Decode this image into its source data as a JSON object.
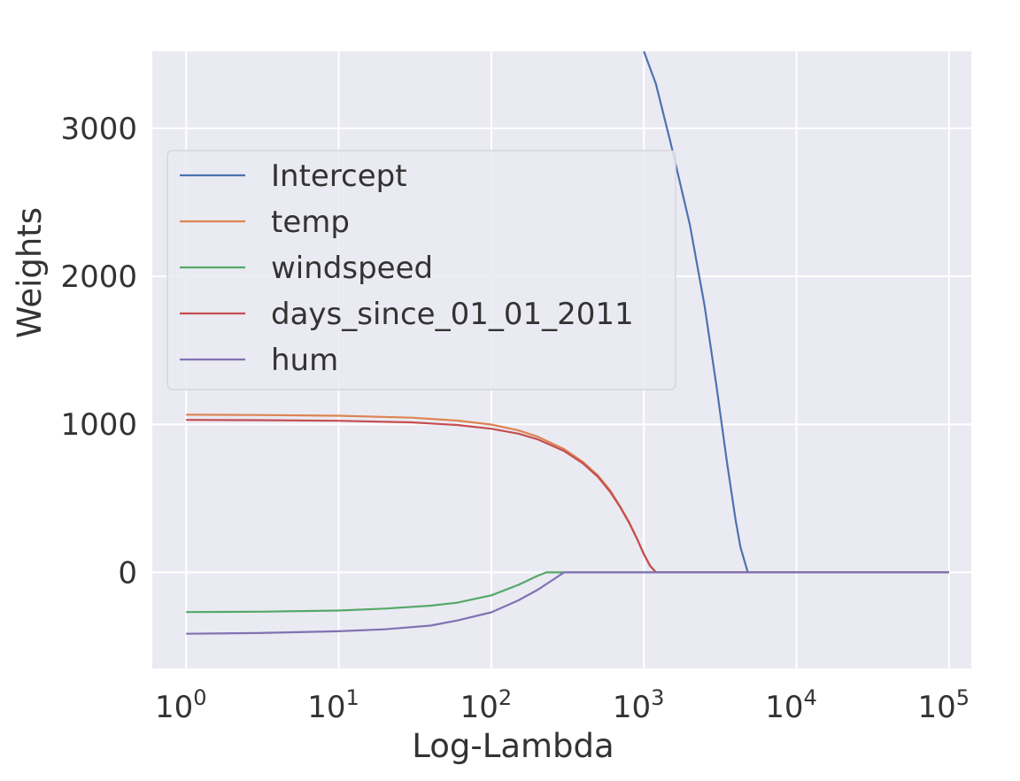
{
  "chart_data": {
    "type": "line",
    "title": "",
    "xlabel": "Log-Lambda",
    "ylabel": "Weights",
    "xscale": "log",
    "xlim": [
      0.6,
      140000
    ],
    "ylim": [
      -650,
      3520
    ],
    "xticks": [
      {
        "value": 1,
        "base": "10",
        "exp": "0"
      },
      {
        "value": 10,
        "base": "10",
        "exp": "1"
      },
      {
        "value": 100,
        "base": "10",
        "exp": "2"
      },
      {
        "value": 1000,
        "base": "10",
        "exp": "3"
      },
      {
        "value": 10000,
        "base": "10",
        "exp": "4"
      },
      {
        "value": 100000,
        "base": "10",
        "exp": "5"
      }
    ],
    "yticks": [
      {
        "value": 0,
        "label": "0"
      },
      {
        "value": 1000,
        "label": "1000"
      },
      {
        "value": 2000,
        "label": "2000"
      },
      {
        "value": 3000,
        "label": "3000"
      }
    ],
    "grid": true,
    "legend_position": "upper-left",
    "series": [
      {
        "name": "Intercept",
        "color": "#4c72b0",
        "x": [
          1000,
          1200,
          1500,
          2000,
          2500,
          3000,
          3500,
          4000,
          4300,
          4800,
          10000,
          100000
        ],
        "y": [
          3520,
          3300,
          2900,
          2350,
          1800,
          1250,
          750,
          350,
          170,
          0,
          0,
          0
        ]
      },
      {
        "name": "temp",
        "color": "#dd8452",
        "x": [
          1,
          3,
          10,
          30,
          60,
          100,
          150,
          200,
          300,
          400,
          500,
          600,
          700,
          800,
          900,
          1000,
          1100,
          1200,
          10000,
          100000
        ],
        "y": [
          1065,
          1063,
          1058,
          1045,
          1025,
          998,
          960,
          918,
          833,
          745,
          655,
          555,
          445,
          340,
          230,
          125,
          45,
          0,
          0,
          0
        ]
      },
      {
        "name": "windspeed",
        "color": "#55a868",
        "x": [
          1,
          3,
          10,
          20,
          40,
          60,
          100,
          150,
          200,
          230,
          300,
          1000,
          100000
        ],
        "y": [
          -268,
          -266,
          -258,
          -245,
          -225,
          -205,
          -155,
          -85,
          -25,
          0,
          0,
          0,
          0
        ]
      },
      {
        "name": "days_since_01_01_2011",
        "color": "#c44e52",
        "x": [
          1,
          3,
          10,
          30,
          60,
          100,
          150,
          200,
          300,
          400,
          500,
          600,
          700,
          800,
          900,
          1000,
          1100,
          1200,
          10000,
          100000
        ],
        "y": [
          1030,
          1028,
          1024,
          1013,
          995,
          970,
          937,
          900,
          820,
          735,
          645,
          545,
          440,
          335,
          228,
          122,
          42,
          0,
          0,
          0
        ]
      },
      {
        "name": "hum",
        "color": "#8172b3",
        "x": [
          1,
          3,
          10,
          20,
          40,
          60,
          100,
          150,
          200,
          250,
          300,
          1000,
          100000
        ],
        "y": [
          -415,
          -410,
          -398,
          -385,
          -360,
          -325,
          -270,
          -190,
          -120,
          -55,
          0,
          0,
          0
        ]
      }
    ]
  }
}
